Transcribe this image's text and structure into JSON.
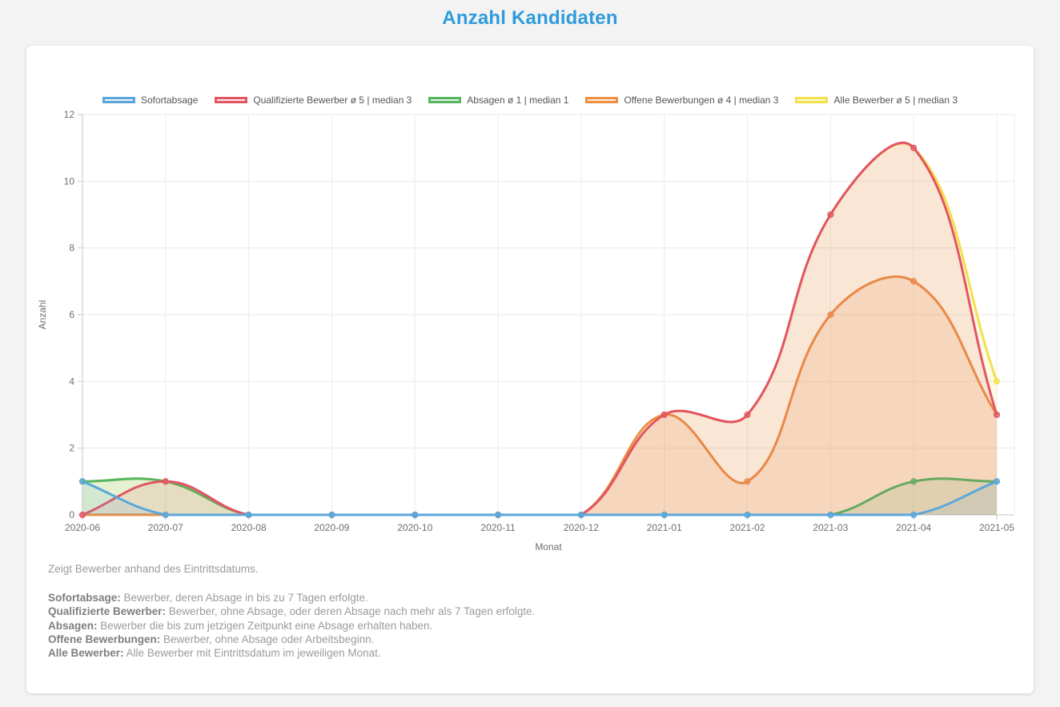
{
  "title": "Anzahl Kandidaten",
  "title_color": "#2E9CDB",
  "chart_data": {
    "type": "line",
    "title": "Anzahl Kandidaten",
    "xlabel": "Monat",
    "ylabel": "Anzahl",
    "ylim": [
      0,
      12
    ],
    "ytick_step": 2,
    "grid": true,
    "legend_position": "top",
    "curve": "bezier-tension-0.4",
    "categories": [
      "2020-06",
      "2020-07",
      "2020-08",
      "2020-09",
      "2020-10",
      "2020-11",
      "2020-12",
      "2021-01",
      "2021-02",
      "2021-03",
      "2021-04",
      "2021-05"
    ],
    "series": [
      {
        "name": "Sofortabsage",
        "slug": "sofortabsage",
        "color": "#5BA7DB",
        "fill": "rgba(91,167,219,0.12)",
        "point_fill": "rgba(91,167,219,0.45)",
        "values": [
          1,
          0,
          0,
          0,
          0,
          0,
          0,
          0,
          0,
          0,
          0,
          1
        ]
      },
      {
        "name": "Qualifizierte Bewerber ø 5 | median 3",
        "slug": "qualifizierte-bewerber",
        "color": "#E25563",
        "fill": "rgba(226,85,99,0.12)",
        "point_fill": "rgba(226,85,99,0.35)",
        "values": [
          0,
          1,
          0,
          0,
          0,
          0,
          0,
          3,
          3,
          9,
          11,
          3
        ]
      },
      {
        "name": "Absagen ø 1 | median 1",
        "slug": "absagen",
        "color": "#56B65F",
        "fill": "rgba(86,182,95,0.14)",
        "point_fill": "rgba(86,182,95,0.35)",
        "values": [
          1,
          1,
          0,
          0,
          0,
          0,
          0,
          0,
          0,
          0,
          1,
          1
        ]
      },
      {
        "name": "Offene Bewerbungen ø 4 | median 3",
        "slug": "offene-bewerbungen",
        "color": "#EC9044",
        "fill": "rgba(236,144,68,0.16)",
        "point_fill": "rgba(236,144,68,0.35)",
        "values": [
          0,
          0,
          0,
          0,
          0,
          0,
          0,
          3,
          1,
          6,
          7,
          3
        ]
      },
      {
        "name": "Alle Bewerber ø 5 | median 3",
        "slug": "alle-bewerber",
        "color": "#F2E14C",
        "fill": "rgba(242,225,76,0.15)",
        "point_fill": "rgba(242,225,76,0.4)",
        "values": [
          1,
          1,
          0,
          0,
          0,
          0,
          0,
          3,
          3,
          9,
          11,
          4
        ]
      }
    ]
  },
  "notes": {
    "intro": "Zeigt Bewerber anhand des Eintrittsdatums.",
    "items": [
      {
        "term": "Sofortabsage:",
        "text": " Bewerber, deren Absage in bis zu 7 Tagen erfolgte."
      },
      {
        "term": "Qualifizierte Bewerber:",
        "text": " Bewerber, ohne Absage, oder deren Absage nach mehr als 7 Tagen erfolgte."
      },
      {
        "term": "Absagen:",
        "text": " Bewerber die bis zum jetzigen Zeitpunkt eine Absage erhalten haben."
      },
      {
        "term": "Offene Bewerbungen:",
        "text": " Bewerber, ohne Absage oder Arbeitsbeginn."
      },
      {
        "term": "Alle Bewerber:",
        "text": " Alle Bewerber mit Eintrittsdatum im jeweiligen Monat."
      }
    ]
  }
}
